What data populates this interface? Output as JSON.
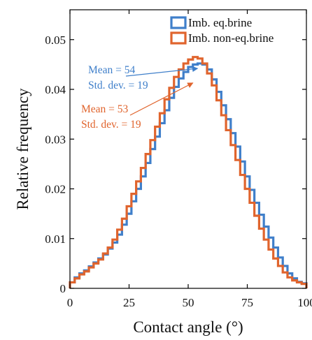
{
  "chart_data": {
    "type": "line",
    "xlabel": "Contact angle (°)",
    "ylabel": "Relative frequency",
    "xlim": [
      0,
      100
    ],
    "ylim": [
      0,
      0.056
    ],
    "xticks": [
      0,
      25,
      50,
      75,
      100
    ],
    "xtick_labels": [
      "0",
      "25",
      "50",
      "75",
      "100"
    ],
    "yticks": [
      0,
      0.01,
      0.02,
      0.03,
      0.04,
      0.05
    ],
    "ytick_labels": [
      "0",
      "0.01",
      "0.02",
      "0.03",
      "0.04",
      "0.05"
    ],
    "grid": false,
    "legend_position": "top-right",
    "bin_edges": [
      0,
      2,
      4,
      6,
      8,
      10,
      12,
      14,
      16,
      18,
      20,
      22,
      24,
      26,
      28,
      30,
      32,
      34,
      36,
      38,
      40,
      42,
      44,
      46,
      48,
      50,
      52,
      54,
      56,
      58,
      60,
      62,
      64,
      66,
      68,
      70,
      72,
      74,
      76,
      78,
      80,
      82,
      84,
      86,
      88,
      90,
      92,
      94,
      96,
      98,
      100
    ],
    "series": [
      {
        "name": "Imb. eq.brine",
        "color": "#3f7fca",
        "values": [
          0.0012,
          0.0022,
          0.003,
          0.0036,
          0.0044,
          0.0052,
          0.006,
          0.0068,
          0.008,
          0.0092,
          0.0108,
          0.0128,
          0.015,
          0.0175,
          0.02,
          0.0225,
          0.0252,
          0.028,
          0.0305,
          0.0332,
          0.0358,
          0.0383,
          0.0405,
          0.0422,
          0.0435,
          0.0445,
          0.045,
          0.0452,
          0.045,
          0.044,
          0.042,
          0.0395,
          0.0368,
          0.034,
          0.0312,
          0.0285,
          0.0255,
          0.0225,
          0.0198,
          0.0172,
          0.0148,
          0.0124,
          0.0102,
          0.0082,
          0.0062,
          0.0045,
          0.003,
          0.002,
          0.0013,
          0.001
        ]
      },
      {
        "name": "Imb. non-eq.brine",
        "color": "#e0642d",
        "values": [
          0.0012,
          0.002,
          0.0028,
          0.0034,
          0.0042,
          0.005,
          0.0058,
          0.007,
          0.0082,
          0.0098,
          0.0118,
          0.014,
          0.0165,
          0.019,
          0.0215,
          0.0242,
          0.027,
          0.0298,
          0.0325,
          0.0352,
          0.038,
          0.0403,
          0.0425,
          0.044,
          0.0452,
          0.046,
          0.0465,
          0.0462,
          0.0452,
          0.0432,
          0.0408,
          0.0378,
          0.0348,
          0.0318,
          0.0288,
          0.0258,
          0.0228,
          0.02,
          0.0172,
          0.0146,
          0.012,
          0.0098,
          0.0078,
          0.006,
          0.0045,
          0.0032,
          0.0022,
          0.0016,
          0.0012,
          0.0009
        ]
      }
    ],
    "annotations": [
      {
        "series": "Imb. eq.brine",
        "color": "#3f7fca",
        "lines": [
          "Mean = 54",
          "Std. dev. = 19"
        ],
        "arrow_to": [
          54,
          0.0442
        ]
      },
      {
        "series": "Imb. non-eq.brine",
        "color": "#e0642d",
        "lines": [
          "Mean = 53",
          "Std. dev. = 19"
        ],
        "arrow_to": [
          52,
          0.0413
        ]
      }
    ]
  }
}
